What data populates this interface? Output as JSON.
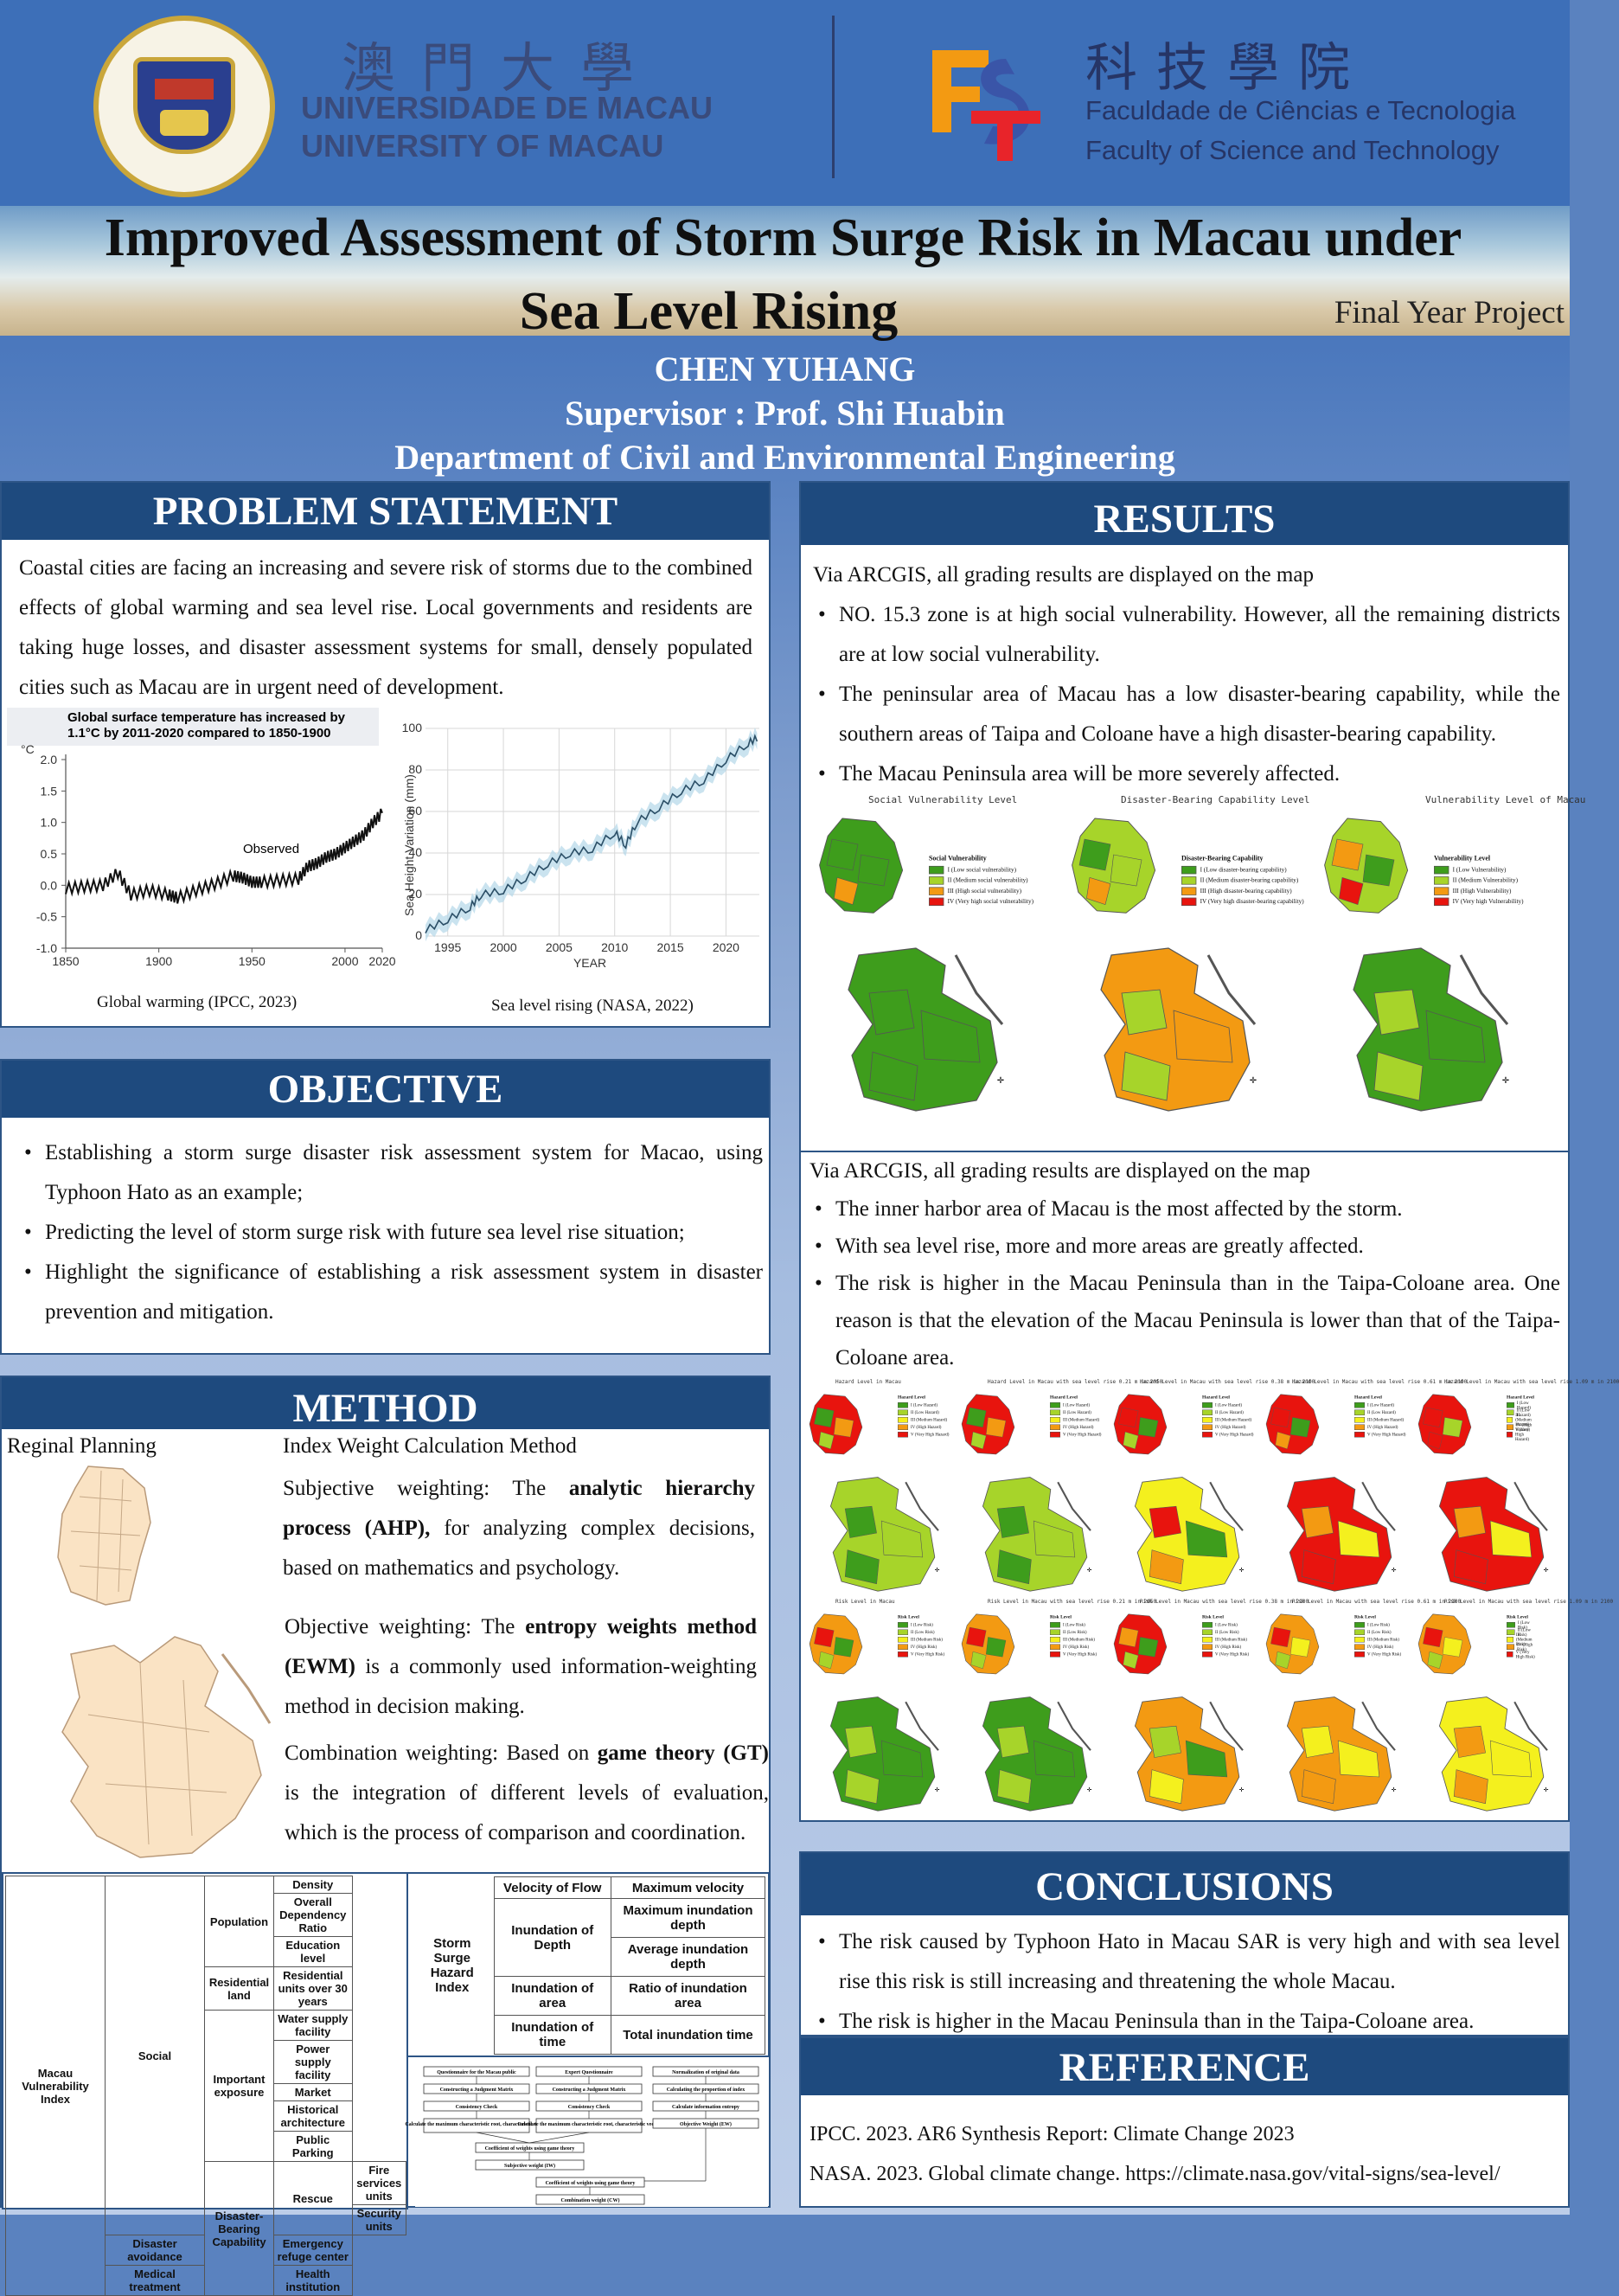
{
  "header": {
    "um_chinese": "澳門大學",
    "um_portuguese": "UNIVERSIDADE DE MACAU",
    "um_english": "UNIVERSITY OF MACAU",
    "fst_chinese": "科技學院",
    "fst_portuguese": "Faculdade de Ciências e Tecnologia",
    "fst_english": "Faculty of Science and Technology",
    "fst_logo_text": "FST"
  },
  "title": {
    "line1": "Improved Assessment of Storm Surge Risk in Macau under",
    "line2": "Sea Level Rising",
    "tag": "Final Year Project"
  },
  "author": "CHEN YUHANG",
  "supervisor": "Supervisor : Prof. Shi Huabin",
  "department": "Department of Civil and Environmental Engineering",
  "problem": {
    "heading": "PROBLEM STATEMENT",
    "text": "Coastal cities are facing an increasing and severe risk of storms due to the combined effects of global warming and sea level rise. Local governments and residents are taking huge losses, and disaster assessment systems for small, densely populated cities such as Macau are in urgent need of development.",
    "chart1_title_l1": "Global surface temperature has increased by",
    "chart1_title_l2": "1.1°C by 2011-2020 compared to 1850-1900",
    "chart1_unit": "°C",
    "chart1_annotation": "Observed",
    "chart1_caption": "Global warming (IPCC, 2023)",
    "chart2_ylabel": "Sea Height Variation (mm)",
    "chart2_xlabel": "YEAR",
    "chart2_caption": "Sea level rising (NASA, 2022)"
  },
  "chart_data": [
    {
      "type": "line",
      "title": "Global surface temperature has increased by 1.1°C by 2011-2020 compared to 1850-1900",
      "xlabel": "",
      "ylabel": "°C",
      "xlim": [
        1850,
        2020
      ],
      "ylim": [
        -1.0,
        2.0
      ],
      "xticks": [
        1850,
        1900,
        1950,
        2000,
        2020
      ],
      "yticks": [
        2.0,
        1.5,
        1.0,
        0.5,
        0.0,
        -0.5,
        -1.0
      ],
      "series": [
        {
          "name": "Observed",
          "x": [
            1850,
            1860,
            1870,
            1878,
            1885,
            1895,
            1905,
            1910,
            1920,
            1930,
            1940,
            1945,
            1950,
            1955,
            1965,
            1975,
            1980,
            1985,
            1990,
            1995,
            2000,
            2005,
            2010,
            2015,
            2020
          ],
          "y": [
            -0.05,
            -0.02,
            0.0,
            0.2,
            -0.15,
            -0.08,
            -0.15,
            -0.2,
            -0.08,
            0.02,
            0.15,
            0.12,
            0.05,
            0.05,
            0.08,
            0.1,
            0.3,
            0.35,
            0.45,
            0.5,
            0.6,
            0.7,
            0.8,
            1.0,
            1.15
          ]
        }
      ]
    },
    {
      "type": "line",
      "title": "",
      "xlabel": "YEAR",
      "ylabel": "Sea Height Variation (mm)",
      "xlim": [
        1993,
        2023
      ],
      "ylim": [
        0,
        100
      ],
      "xticks": [
        1995,
        2000,
        2005,
        2010,
        2015,
        2020
      ],
      "yticks": [
        0,
        20,
        40,
        60,
        80,
        100
      ],
      "series": [
        {
          "x": [
            1993,
            1995,
            1997,
            1998,
            2000,
            2002,
            2004,
            2006,
            2008,
            2010,
            2011,
            2012,
            2014,
            2016,
            2018,
            2020,
            2022,
            2023
          ],
          "y": [
            3,
            8,
            14,
            20,
            22,
            28,
            35,
            40,
            42,
            50,
            44,
            55,
            62,
            70,
            75,
            85,
            93,
            96
          ]
        }
      ]
    }
  ],
  "objective": {
    "heading": "OBJECTIVE",
    "items": [
      "Establishing a storm surge disaster risk assessment system for Macao, using Typhoon Hato as an example;",
      "Predicting the level of storm surge risk with future sea level rise situation;",
      "Highlight the significance of establishing a risk assessment system in disaster prevention and mitigation."
    ]
  },
  "method": {
    "heading": "METHOD",
    "regional": "Reginal Planning",
    "index_title": "Index Weight Calculation Method",
    "subj_pre": "Subjective weighting: The ",
    "subj_bold": "analytic hierarchy process (AHP),",
    "subj_post": " for analyzing complex decisions, based on mathematics and psychology.",
    "obj_pre": "Objective weighting: The ",
    "obj_bold": "entropy weights method (EWM)",
    "obj_post": " is a commonly used information-weighting method in decision making.",
    "comb_pre": "Combination weighting: Based on ",
    "comb_bold": "game theory (GT)",
    "comb_post": " is the integration of different levels of evaluation, which is the process of comparison and coordination.",
    "table": {
      "root": "Macau Vulnerability Index",
      "social": "Social",
      "population": "Population",
      "density": "Density",
      "dependency": "Overall Dependency Ratio",
      "education": "Education level",
      "residential": "Residential land",
      "residential_units": "Residential units over 30 years",
      "important": "Important exposure",
      "water": "Water supply facility",
      "power": "Power supply facility",
      "market": "Market",
      "historical": "Historical architecture",
      "parking": "Public Parking",
      "dbc": "Disaster-Bearing Capability",
      "rescue": "Rescue",
      "fire": "Fire services units",
      "security": "Security units",
      "avoid": "Disaster avoidance",
      "refuge": "Emergency refuge center",
      "medical": "Medical treatment",
      "health": "Health institution"
    },
    "hazard": {
      "root": "Storm Surge Hazard Index",
      "velocity": "Velocity of Flow",
      "max_velocity": "Maximum velocity",
      "depth": "Inundation of Depth",
      "max_depth": "Maximum inundation depth",
      "avg_depth": "Average inundation depth",
      "area": "Inundation of area",
      "ratio": "Ratio of inundation area",
      "time": "Inundation of time",
      "total_time": "Total inundation time"
    },
    "flow_boxes": [
      "Questionnaire for the Macau public",
      "Expert Questionnaire",
      "Normalization of original data",
      "Constructing a Judgment Matrix",
      "Constructing a Judgment Matrix",
      "Calculating the proportion of index",
      "Consistency Check",
      "Consistency Check",
      "Calculate information entropy",
      "Calculate the maximum characteristic root, characteristic vector",
      "Calculate the maximum characteristic root, characteristic vector",
      "Objective Weight (EW)",
      "Coefficient of weights using game theory",
      "Subjective weight (IW)",
      "Coefficient of weights using game theory",
      "Combination weight (CW)"
    ]
  },
  "results": {
    "heading": "RESULTS",
    "intro1": "Via ARCGIS, all grading results are displayed on the map",
    "items1": [
      "NO. 15.3 zone is at high social vulnerability. However, all the remaining districts are at low social vulnerability.",
      "The peninsular area of Macau has a low disaster-bearing capability, while the southern areas of Taipa and Coloane have a high disaster-bearing capability.",
      "The Macau Peninsula area will be more severely affected."
    ],
    "map_titles": [
      "Social Vulnerability Level",
      "Disaster-Bearing Capability Level",
      "Vulnerability Level of Macau"
    ],
    "legend1_title": "Social Vulnerability",
    "legend1": [
      "I (Low social vulnerability)",
      "II (Medium social vulnerability)",
      "III (High social vulnerability)",
      "IV (Very high social vulnerability)"
    ],
    "legend2_title": "Disaster-Bearing Capability",
    "legend2": [
      "I (Low disaster-bearing capability)",
      "II (Medium disaster-bearing capability)",
      "III (High disaster-bearing capability)",
      "IV (Very high disaster-bearing capability)"
    ],
    "legend3_title": "Vulnerability Level",
    "legend3": [
      "I (Low Vulnerability)",
      "II (Medium Vulnerability)",
      "III (High Vulnerability)",
      "IV (Very high Vulnerability)"
    ],
    "intro2": "Via ARCGIS, all grading results are displayed on the map",
    "items2": [
      "The inner harbor area of Macau is the most affected by the storm.",
      "With sea level rise, more and more areas are greatly affected.",
      "The risk is higher in the Macau Peninsula than in the Taipa-Coloane area. One reason is that the elevation of the Macau Peninsula is lower than that of the Taipa-Coloane area."
    ],
    "hazard_titles": [
      "Hazard Level in Macau",
      "Hazard Level in Macau with sea level rise 0.21 m in 2050",
      "Hazard Level in Macau with sea level rise 0.38 m in 2100",
      "Hazard Level in Macau with sea level rise 0.61 m in 2100",
      "Hazard Level in Macau with sea level rise 1.09 m in 2100"
    ],
    "risk_titles": [
      "Risk Level in Macau",
      "Risk Level in Macau with sea level rise 0.21 m in 2050",
      "Risk Level in Macau with sea level rise 0.38 m in 2100",
      "Risk Level in Macau with sea level rise 0.61 m in 2100",
      "Risk Level in Macau with sea level rise 1.09 m in 2100"
    ],
    "hazard_legend_title": "Hazard Level",
    "risk_legend_title": "Risk Level",
    "level_labels": [
      "I (Low Hazard)",
      "II (Low Hazard)",
      "III (Medium Hazard)",
      "IV (High Hazard)",
      "V (Very High Hazard)"
    ],
    "risk_labels": [
      "I (Low Risk)",
      "II (Low Risk)",
      "III (Medium Risk)",
      "IV (High Risk)",
      "V (Very High Risk)"
    ],
    "colors": {
      "green": "#3e9d1c",
      "lime": "#a7d42a",
      "yellow": "#f4f01e",
      "orange": "#f39a12",
      "red": "#e8140e"
    }
  },
  "conclusions": {
    "heading": "CONCLUSIONS",
    "items": [
      "The risk caused by Typhoon Hato in Macau SAR is very high and with sea level rise this risk is still increasing and threatening the whole Macau.",
      "The risk is higher in the Macau Peninsula than in the Taipa-Coloane area."
    ]
  },
  "reference": {
    "heading": "REFERENCE",
    "items": [
      "IPCC. 2023.  AR6 Synthesis Report: Climate Change 2023",
      "NASA. 2023. Global climate change. https://climate.nasa.gov/vital-signs/sea-level/"
    ]
  }
}
